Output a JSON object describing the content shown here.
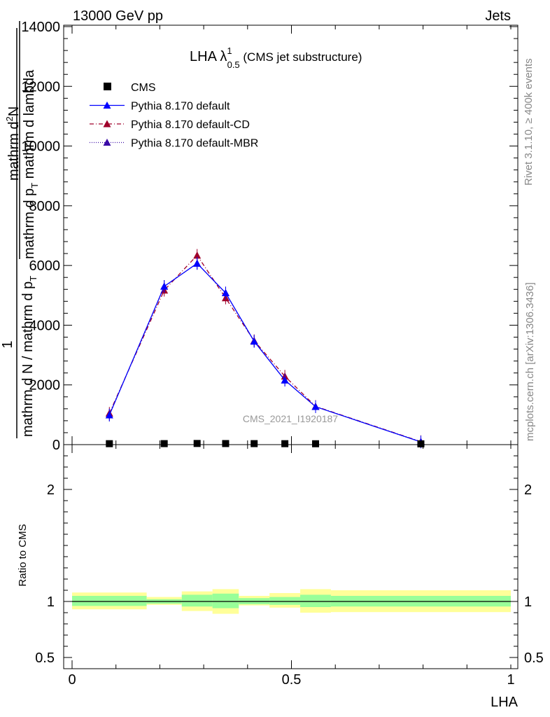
{
  "header": {
    "left": "13000 GeV pp",
    "right": "Jets"
  },
  "side_labels": {
    "rivet": "Rivet 3.1.10, ≥ 400k events",
    "mcplots": "mcplots.cern.ch [arXiv:1306.3436]"
  },
  "title": {
    "main": "LHA λ",
    "sup": "1",
    "sub": "0.5",
    "suffix": " (CMS jet substructure)"
  },
  "watermark": "CMS_2021_I1920187",
  "ylabel_main": {
    "num_one": "1",
    "den": "mathrm d N / mathrm d p",
    "den_sub": "T",
    "num_frac": "mathrm d",
    "num_sup": "2",
    "num_rest": "N",
    "den2": "mathrm d p",
    "den2_sub": "T",
    "den2_rest": " mathrm d lambda"
  },
  "ylabel_ratio": "Ratio to CMS",
  "xlabel": "LHA",
  "legend": [
    {
      "label": "CMS",
      "color": "#000000",
      "marker": "square",
      "dash": ""
    },
    {
      "label": "Pythia 8.170 default",
      "color": "#0000ff",
      "marker": "triangle",
      "dash": ""
    },
    {
      "label": "Pythia 8.170 default-CD",
      "color": "#a0002a",
      "marker": "triangle",
      "dash": "6,3,1,3"
    },
    {
      "label": "Pythia 8.170 default-MBR",
      "color": "#3a0aa6",
      "marker": "triangle",
      "dash": "1,2"
    }
  ],
  "chart_data": {
    "type": "line",
    "xlabel": "LHA",
    "ylabel": "1/(mathrm d N / mathrm d p_T) mathrm d^2N/(mathrm d p_T mathrm d lambda)",
    "xlim": [
      0,
      1
    ],
    "ylim": [
      0,
      14000
    ],
    "yticks": [
      0,
      2000,
      4000,
      6000,
      8000,
      10000,
      12000,
      14000
    ],
    "xticks": [
      0,
      0.5,
      1
    ],
    "ratio_ylim": [
      0.4,
      2.4
    ],
    "ratio_yticks": [
      0.5,
      1,
      2
    ],
    "bins": [
      0,
      0.17,
      0.25,
      0.32,
      0.38,
      0.45,
      0.52,
      0.59,
      1.0
    ],
    "series": [
      {
        "name": "CMS",
        "x": [
          0.085,
          0.21,
          0.285,
          0.35,
          0.415,
          0.485,
          0.555,
          0.795
        ],
        "values": [
          8,
          10,
          15,
          12,
          10,
          8,
          6,
          3
        ]
      },
      {
        "name": "Pythia 8.170 default",
        "x": [
          0.085,
          0.21,
          0.285,
          0.35,
          0.415,
          0.485,
          0.555,
          0.795
        ],
        "values": [
          990,
          5300,
          6070,
          5080,
          3460,
          2160,
          1270,
          90
        ]
      },
      {
        "name": "Pythia 8.170 default-CD",
        "x": [
          0.085,
          0.21,
          0.285,
          0.35,
          0.415,
          0.485,
          0.555,
          0.795
        ],
        "values": [
          1050,
          5170,
          6340,
          4910,
          3480,
          2290,
          1280,
          100
        ]
      },
      {
        "name": "Pythia 8.170 default-MBR",
        "x": [
          0.085,
          0.21,
          0.285,
          0.35,
          0.415,
          0.485,
          0.555,
          0.795
        ],
        "values": [
          990,
          5300,
          6070,
          5080,
          3460,
          2160,
          1270,
          90
        ]
      }
    ],
    "ratio_bands": {
      "inner": [
        [
          0.96,
          1.05
        ],
        [
          0.98,
          1.02
        ],
        [
          0.955,
          1.06
        ],
        [
          0.94,
          1.07
        ],
        [
          0.975,
          1.03
        ],
        [
          0.97,
          1.04
        ],
        [
          0.95,
          1.06
        ],
        [
          0.955,
          1.05
        ]
      ],
      "outer": [
        [
          0.93,
          1.08
        ],
        [
          0.97,
          1.04
        ],
        [
          0.915,
          1.09
        ],
        [
          0.89,
          1.11
        ],
        [
          0.965,
          1.05
        ],
        [
          0.945,
          1.075
        ],
        [
          0.9,
          1.11
        ],
        [
          0.905,
          1.1
        ]
      ]
    },
    "grid": false,
    "legend_position": "top-left"
  }
}
